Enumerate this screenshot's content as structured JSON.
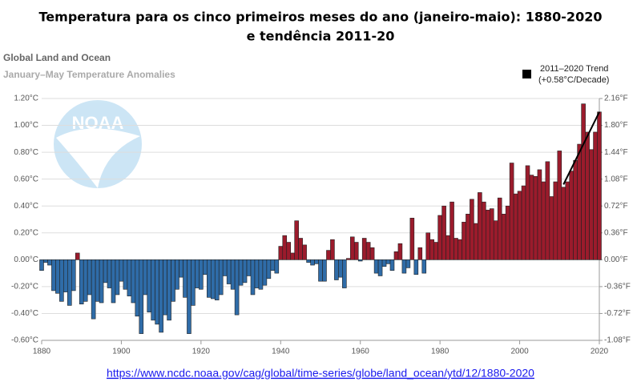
{
  "chart_data": {
    "type": "bar",
    "title_lines": [
      "Temperatura para os cinco primeiros meses do ano (janeiro-maio): 1880-2020",
      "e tendência 2011-20"
    ],
    "subtitle": "Global Land and Ocean",
    "subtitle2": "January–May Temperature Anomalies",
    "logo": "NOAA",
    "source": "https://www.ncdc.noaa.gov/cag/global/time-series/globe/land_ocean/ytd/12/1880-2020",
    "x": [
      1880,
      1881,
      1882,
      1883,
      1884,
      1885,
      1886,
      1887,
      1888,
      1889,
      1890,
      1891,
      1892,
      1893,
      1894,
      1895,
      1896,
      1897,
      1898,
      1899,
      1900,
      1901,
      1902,
      1903,
      1904,
      1905,
      1906,
      1907,
      1908,
      1909,
      1910,
      1911,
      1912,
      1913,
      1914,
      1915,
      1916,
      1917,
      1918,
      1919,
      1920,
      1921,
      1922,
      1923,
      1924,
      1925,
      1926,
      1927,
      1928,
      1929,
      1930,
      1931,
      1932,
      1933,
      1934,
      1935,
      1936,
      1937,
      1938,
      1939,
      1940,
      1941,
      1942,
      1943,
      1944,
      1945,
      1946,
      1947,
      1948,
      1949,
      1950,
      1951,
      1952,
      1953,
      1954,
      1955,
      1956,
      1957,
      1958,
      1959,
      1960,
      1961,
      1962,
      1963,
      1964,
      1965,
      1966,
      1967,
      1968,
      1969,
      1970,
      1971,
      1972,
      1973,
      1974,
      1975,
      1976,
      1977,
      1978,
      1979,
      1980,
      1981,
      1982,
      1983,
      1984,
      1985,
      1986,
      1987,
      1988,
      1989,
      1990,
      1991,
      1992,
      1993,
      1994,
      1995,
      1996,
      1997,
      1998,
      1999,
      2000,
      2001,
      2002,
      2003,
      2004,
      2005,
      2006,
      2007,
      2008,
      2009,
      2010,
      2011,
      2012,
      2013,
      2014,
      2015,
      2016,
      2017,
      2018,
      2019,
      2020
    ],
    "values": [
      -0.08,
      -0.02,
      -0.04,
      -0.23,
      -0.25,
      -0.31,
      -0.24,
      -0.34,
      -0.23,
      0.05,
      -0.33,
      -0.31,
      -0.26,
      -0.44,
      -0.31,
      -0.32,
      -0.17,
      -0.21,
      -0.32,
      -0.26,
      -0.16,
      -0.22,
      -0.27,
      -0.32,
      -0.42,
      -0.55,
      -0.26,
      -0.39,
      -0.45,
      -0.48,
      -0.54,
      -0.41,
      -0.45,
      -0.31,
      -0.22,
      -0.13,
      -0.28,
      -0.55,
      -0.34,
      -0.21,
      -0.22,
      -0.11,
      -0.28,
      -0.29,
      -0.3,
      -0.26,
      -0.12,
      -0.18,
      -0.22,
      -0.41,
      -0.19,
      -0.17,
      -0.12,
      -0.26,
      -0.21,
      -0.22,
      -0.19,
      -0.14,
      -0.08,
      -0.1,
      0.1,
      0.18,
      0.13,
      0.05,
      0.29,
      0.16,
      0.11,
      -0.02,
      -0.04,
      -0.03,
      -0.16,
      -0.16,
      0.07,
      0.15,
      -0.15,
      -0.13,
      -0.21,
      0.01,
      0.17,
      0.13,
      -0.01,
      0.16,
      0.13,
      0.09,
      -0.1,
      -0.12,
      -0.05,
      -0.03,
      -0.08,
      0.06,
      0.12,
      -0.1,
      -0.06,
      0.31,
      -0.11,
      0.09,
      -0.1,
      0.2,
      0.15,
      0.13,
      0.33,
      0.4,
      0.18,
      0.43,
      0.16,
      0.15,
      0.28,
      0.34,
      0.45,
      0.27,
      0.5,
      0.43,
      0.37,
      0.38,
      0.29,
      0.46,
      0.34,
      0.4,
      0.72,
      0.49,
      0.51,
      0.55,
      0.7,
      0.63,
      0.62,
      0.67,
      0.58,
      0.73,
      0.47,
      0.58,
      0.81,
      0.54,
      0.58,
      0.66,
      0.74,
      0.86,
      1.16,
      0.95,
      0.82,
      0.95,
      1.1
    ],
    "colors": {
      "positive": "#9b1b2c",
      "negative": "#2f6ca8"
    },
    "trend": {
      "name": "2011–2020 Trend",
      "note": "(+0.58°C/Decade)",
      "color": "#000000",
      "x": [
        2011,
        2020
      ],
      "values": [
        0.56,
        1.1
      ]
    },
    "xlim": [
      1880,
      2020
    ],
    "xticks": [
      1880,
      1900,
      1920,
      1940,
      1960,
      1980,
      2000,
      2020
    ],
    "ylim": [
      -0.6,
      1.2
    ],
    "yticks": [
      {
        "value": 1.2,
        "label": "1.20°C"
      },
      {
        "value": 1.0,
        "label": "1.00°C"
      },
      {
        "value": 0.8,
        "label": "0.80°C"
      },
      {
        "value": 0.6,
        "label": "0.60°C"
      },
      {
        "value": 0.4,
        "label": "0.40°C"
      },
      {
        "value": 0.2,
        "label": "0.20°C"
      },
      {
        "value": 0,
        "label": "0.00°C"
      },
      {
        "value": -0.2,
        "label": "-0.20°C"
      },
      {
        "value": -0.4,
        "label": "-0.40°C"
      },
      {
        "value": -0.6,
        "label": "-0.60°C"
      }
    ],
    "y2lim": [
      -1.08,
      2.16
    ],
    "y2ticks": [
      {
        "value": 2.16,
        "label": "2.16°F"
      },
      {
        "value": 1.8,
        "label": "1.80°F"
      },
      {
        "value": 1.44,
        "label": "1.44°F"
      },
      {
        "value": 1.08,
        "label": "1.08°F"
      },
      {
        "value": 0.72,
        "label": "0.72°F"
      },
      {
        "value": 0.36,
        "label": "0.36°F"
      },
      {
        "value": 0,
        "label": "0.00°F"
      },
      {
        "value": -0.36,
        "label": "-0.36°F"
      },
      {
        "value": -0.72,
        "label": "-0.72°F"
      },
      {
        "value": -1.08,
        "label": "-1.08°F"
      }
    ],
    "grid": true
  }
}
